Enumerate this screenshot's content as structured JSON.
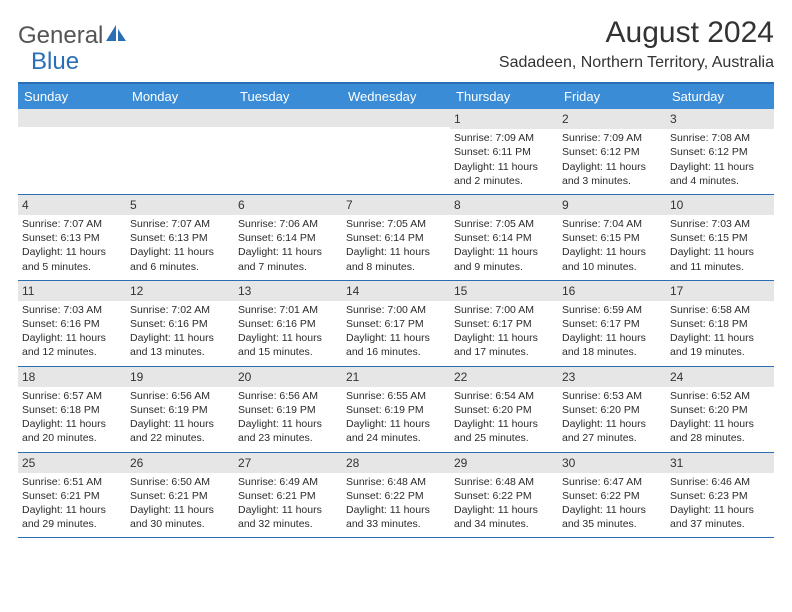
{
  "logo": {
    "word1": "General",
    "word2": "Blue"
  },
  "title": "August 2024",
  "subtitle": "Sadadeen, Northern Territory, Australia",
  "colors": {
    "header_band": "#3a8cd6",
    "accent_border": "#2a6fb5",
    "row_shade": "#e6e6e6",
    "text": "#2b2b2b"
  },
  "dayHeaders": [
    "Sunday",
    "Monday",
    "Tuesday",
    "Wednesday",
    "Thursday",
    "Friday",
    "Saturday"
  ],
  "weeks": [
    [
      {
        "n": "",
        "sr": "",
        "ss": "",
        "dl": ""
      },
      {
        "n": "",
        "sr": "",
        "ss": "",
        "dl": ""
      },
      {
        "n": "",
        "sr": "",
        "ss": "",
        "dl": ""
      },
      {
        "n": "",
        "sr": "",
        "ss": "",
        "dl": ""
      },
      {
        "n": "1",
        "sr": "Sunrise: 7:09 AM",
        "ss": "Sunset: 6:11 PM",
        "dl": "Daylight: 11 hours and 2 minutes."
      },
      {
        "n": "2",
        "sr": "Sunrise: 7:09 AM",
        "ss": "Sunset: 6:12 PM",
        "dl": "Daylight: 11 hours and 3 minutes."
      },
      {
        "n": "3",
        "sr": "Sunrise: 7:08 AM",
        "ss": "Sunset: 6:12 PM",
        "dl": "Daylight: 11 hours and 4 minutes."
      }
    ],
    [
      {
        "n": "4",
        "sr": "Sunrise: 7:07 AM",
        "ss": "Sunset: 6:13 PM",
        "dl": "Daylight: 11 hours and 5 minutes."
      },
      {
        "n": "5",
        "sr": "Sunrise: 7:07 AM",
        "ss": "Sunset: 6:13 PM",
        "dl": "Daylight: 11 hours and 6 minutes."
      },
      {
        "n": "6",
        "sr": "Sunrise: 7:06 AM",
        "ss": "Sunset: 6:14 PM",
        "dl": "Daylight: 11 hours and 7 minutes."
      },
      {
        "n": "7",
        "sr": "Sunrise: 7:05 AM",
        "ss": "Sunset: 6:14 PM",
        "dl": "Daylight: 11 hours and 8 minutes."
      },
      {
        "n": "8",
        "sr": "Sunrise: 7:05 AM",
        "ss": "Sunset: 6:14 PM",
        "dl": "Daylight: 11 hours and 9 minutes."
      },
      {
        "n": "9",
        "sr": "Sunrise: 7:04 AM",
        "ss": "Sunset: 6:15 PM",
        "dl": "Daylight: 11 hours and 10 minutes."
      },
      {
        "n": "10",
        "sr": "Sunrise: 7:03 AM",
        "ss": "Sunset: 6:15 PM",
        "dl": "Daylight: 11 hours and 11 minutes."
      }
    ],
    [
      {
        "n": "11",
        "sr": "Sunrise: 7:03 AM",
        "ss": "Sunset: 6:16 PM",
        "dl": "Daylight: 11 hours and 12 minutes."
      },
      {
        "n": "12",
        "sr": "Sunrise: 7:02 AM",
        "ss": "Sunset: 6:16 PM",
        "dl": "Daylight: 11 hours and 13 minutes."
      },
      {
        "n": "13",
        "sr": "Sunrise: 7:01 AM",
        "ss": "Sunset: 6:16 PM",
        "dl": "Daylight: 11 hours and 15 minutes."
      },
      {
        "n": "14",
        "sr": "Sunrise: 7:00 AM",
        "ss": "Sunset: 6:17 PM",
        "dl": "Daylight: 11 hours and 16 minutes."
      },
      {
        "n": "15",
        "sr": "Sunrise: 7:00 AM",
        "ss": "Sunset: 6:17 PM",
        "dl": "Daylight: 11 hours and 17 minutes."
      },
      {
        "n": "16",
        "sr": "Sunrise: 6:59 AM",
        "ss": "Sunset: 6:17 PM",
        "dl": "Daylight: 11 hours and 18 minutes."
      },
      {
        "n": "17",
        "sr": "Sunrise: 6:58 AM",
        "ss": "Sunset: 6:18 PM",
        "dl": "Daylight: 11 hours and 19 minutes."
      }
    ],
    [
      {
        "n": "18",
        "sr": "Sunrise: 6:57 AM",
        "ss": "Sunset: 6:18 PM",
        "dl": "Daylight: 11 hours and 20 minutes."
      },
      {
        "n": "19",
        "sr": "Sunrise: 6:56 AM",
        "ss": "Sunset: 6:19 PM",
        "dl": "Daylight: 11 hours and 22 minutes."
      },
      {
        "n": "20",
        "sr": "Sunrise: 6:56 AM",
        "ss": "Sunset: 6:19 PM",
        "dl": "Daylight: 11 hours and 23 minutes."
      },
      {
        "n": "21",
        "sr": "Sunrise: 6:55 AM",
        "ss": "Sunset: 6:19 PM",
        "dl": "Daylight: 11 hours and 24 minutes."
      },
      {
        "n": "22",
        "sr": "Sunrise: 6:54 AM",
        "ss": "Sunset: 6:20 PM",
        "dl": "Daylight: 11 hours and 25 minutes."
      },
      {
        "n": "23",
        "sr": "Sunrise: 6:53 AM",
        "ss": "Sunset: 6:20 PM",
        "dl": "Daylight: 11 hours and 27 minutes."
      },
      {
        "n": "24",
        "sr": "Sunrise: 6:52 AM",
        "ss": "Sunset: 6:20 PM",
        "dl": "Daylight: 11 hours and 28 minutes."
      }
    ],
    [
      {
        "n": "25",
        "sr": "Sunrise: 6:51 AM",
        "ss": "Sunset: 6:21 PM",
        "dl": "Daylight: 11 hours and 29 minutes."
      },
      {
        "n": "26",
        "sr": "Sunrise: 6:50 AM",
        "ss": "Sunset: 6:21 PM",
        "dl": "Daylight: 11 hours and 30 minutes."
      },
      {
        "n": "27",
        "sr": "Sunrise: 6:49 AM",
        "ss": "Sunset: 6:21 PM",
        "dl": "Daylight: 11 hours and 32 minutes."
      },
      {
        "n": "28",
        "sr": "Sunrise: 6:48 AM",
        "ss": "Sunset: 6:22 PM",
        "dl": "Daylight: 11 hours and 33 minutes."
      },
      {
        "n": "29",
        "sr": "Sunrise: 6:48 AM",
        "ss": "Sunset: 6:22 PM",
        "dl": "Daylight: 11 hours and 34 minutes."
      },
      {
        "n": "30",
        "sr": "Sunrise: 6:47 AM",
        "ss": "Sunset: 6:22 PM",
        "dl": "Daylight: 11 hours and 35 minutes."
      },
      {
        "n": "31",
        "sr": "Sunrise: 6:46 AM",
        "ss": "Sunset: 6:23 PM",
        "dl": "Daylight: 11 hours and 37 minutes."
      }
    ]
  ]
}
